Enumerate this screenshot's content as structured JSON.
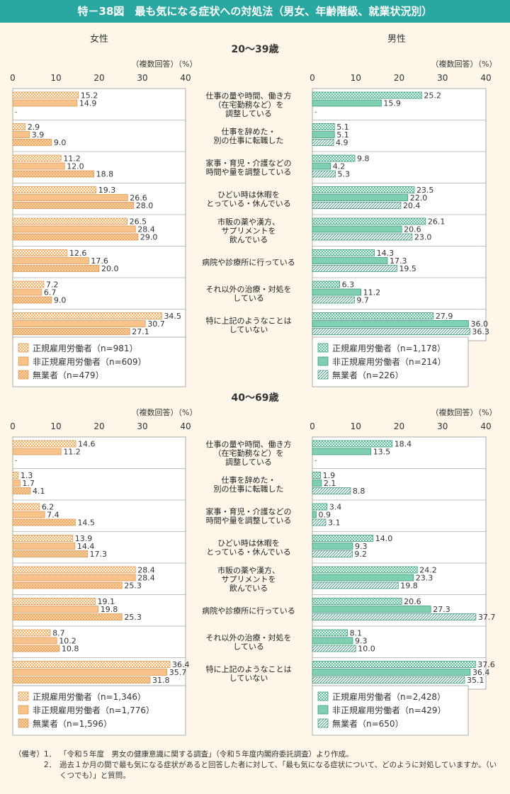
{
  "title": "特－38図　最も気になる症状への対処法（男女、年齢階級、就業状況別）",
  "panel_labels": {
    "female": "女性",
    "male": "男性"
  },
  "axis_unit": "（複数回答）（%）",
  "colors": {
    "teal": "#2aa7a0",
    "female_fill": "#f7c38a",
    "female_edge": "#d9924a",
    "male_fill": "#7fcfb1",
    "male_edge": "#2f8f73",
    "bg": "#fdf6e9"
  },
  "chart_data": [
    {
      "type": "bar",
      "group": "20～39歳",
      "categories": [
        "仕事の量や時間、働き方\n（在宅勤務など）を\n調整している",
        "仕事を辞めた・\n別の仕事に転職した",
        "家事・育児・介護などの\n時間や量を調整している",
        "ひどい時は休暇を\nとっている・休んでいる",
        "市販の薬や漢方、\nサプリメントを\n飲んでいる",
        "病院や診療所に行っている",
        "それ以外の治療・対処を\nしている",
        "特に上記のようなことは\nしていない"
      ],
      "xlim": [
        0,
        40
      ],
      "ticks": [
        0,
        10,
        20,
        30,
        40
      ],
      "female": [
        {
          "name": "正規雇用労働者（n=981）",
          "labels": [
            "15.2",
            "2.9",
            "11.2",
            "19.3",
            "26.5",
            "12.6",
            "7.2",
            "34.5"
          ]
        },
        {
          "name": "非正規雇用労働者（n=609）",
          "labels": [
            "14.9",
            "3.9",
            "12.0",
            "26.6",
            "28.4",
            "17.6",
            "6.7",
            "30.7"
          ]
        },
        {
          "name": "無業者（n=479）",
          "labels": [
            "-",
            "9.0",
            "18.8",
            "28.0",
            "29.0",
            "20.0",
            "9.0",
            "27.1"
          ]
        }
      ],
      "male": [
        {
          "name": "正規雇用労働者（n=1,178）",
          "labels": [
            "25.2",
            "5.1",
            "9.8",
            "23.5",
            "26.1",
            "14.3",
            "6.3",
            "27.9"
          ]
        },
        {
          "name": "非正規雇用労働者（n=214）",
          "labels": [
            "15.9",
            "5.1",
            "4.2",
            "22.0",
            "20.6",
            "17.3",
            "11.2",
            "36.0"
          ]
        },
        {
          "name": "無業者（n=226）",
          "labels": [
            "-",
            "4.9",
            "5.3",
            "20.4",
            "23.0",
            "19.5",
            "9.7",
            "36.3"
          ]
        }
      ]
    },
    {
      "type": "bar",
      "group": "40～69歳",
      "categories": [
        "仕事の量や時間、働き方\n（在宅勤務など）を\n調整している",
        "仕事を辞めた・\n別の仕事に転職した",
        "家事・育児・介護などの\n時間や量を調整している",
        "ひどい時は休暇を\nとっている・休んでいる",
        "市販の薬や漢方、\nサプリメントを\n飲んでいる",
        "病院や診療所に行っている",
        "それ以外の治療・対処を\nしている",
        "特に上記のようなことは\nしていない"
      ],
      "xlim": [
        0,
        40
      ],
      "ticks": [
        0,
        10,
        20,
        30,
        40
      ],
      "female": [
        {
          "name": "正規雇用労働者（n=1,346）",
          "labels": [
            "14.6",
            "1.3",
            "6.2",
            "13.9",
            "28.4",
            "19.1",
            "8.7",
            "36.4"
          ]
        },
        {
          "name": "非正規雇用労働者（n=1,776）",
          "labels": [
            "11.2",
            "1.7",
            "7.4",
            "14.4",
            "28.4",
            "19.8",
            "10.2",
            "35.7"
          ]
        },
        {
          "name": "無業者（n=1,596）",
          "labels": [
            "-",
            "4.1",
            "14.5",
            "17.3",
            "25.3",
            "25.3",
            "10.8",
            "31.8"
          ]
        }
      ],
      "male": [
        {
          "name": "正規雇用労働者（n=2,428）",
          "labels": [
            "18.4",
            "1.9",
            "3.4",
            "14.0",
            "24.2",
            "20.6",
            "8.1",
            "37.6"
          ]
        },
        {
          "name": "非正規雇用労働者（n=429）",
          "labels": [
            "13.5",
            "2.1",
            "0.9",
            "9.3",
            "23.3",
            "27.3",
            "9.3",
            "36.4"
          ]
        },
        {
          "name": "無業者（n=650）",
          "labels": [
            "-",
            "8.8",
            "3.1",
            "9.2",
            "19.8",
            "37.7",
            "10.0",
            "35.1"
          ]
        }
      ]
    }
  ],
  "notes": {
    "prefix": "（備考）",
    "items": [
      {
        "num": "1．",
        "text": "「令和５年度　男女の健康意識に関する調査」（令和５年度内閣府委託調査）より作成。"
      },
      {
        "num": "2．",
        "text": "過去１か月の間で最も気になる症状があると回答した者に対して、「最も気になる症状について、どのように対処していますか。（いくつでも）」と質問。"
      }
    ]
  }
}
